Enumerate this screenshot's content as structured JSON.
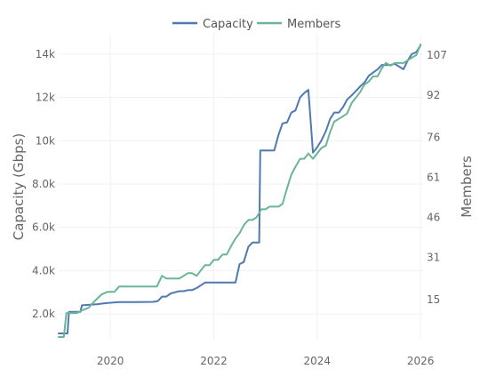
{
  "chart_data": {
    "type": "line",
    "title": "",
    "xlabel": "",
    "ylabel": "Capacity (Gbps)",
    "y2label": "Members",
    "legend_position": "top-center",
    "grid": true,
    "xlim": [
      2019.0,
      2026.05
    ],
    "ylim": [
      813,
      14940
    ],
    "y2lim": [
      0,
      115
    ],
    "x_ticks": [
      2020,
      2022,
      2024,
      2026
    ],
    "x_tick_labels": [
      "2020",
      "2022",
      "2024",
      "2026"
    ],
    "y_ticks": [
      2000,
      4000,
      6000,
      8000,
      10000,
      12000,
      14000
    ],
    "y_tick_labels": [
      "2.0k",
      "4.0k",
      "6.0k",
      "8.0k",
      "10k",
      "12k",
      "14k"
    ],
    "y2_ticks": [
      15,
      31,
      46,
      61,
      76,
      92,
      107
    ],
    "y2_tick_labels": [
      "15",
      "31",
      "46",
      "61",
      "76",
      "92",
      "107"
    ],
    "series": [
      {
        "name": "Capacity",
        "axis": "left",
        "color": "#4f79b0",
        "x": [
          2019.0,
          2019.17,
          2019.2,
          2019.42,
          2019.45,
          2019.75,
          2019.92,
          2020.17,
          2020.5,
          2020.83,
          2020.92,
          2021.0,
          2021.08,
          2021.17,
          2021.25,
          2021.33,
          2021.42,
          2021.5,
          2021.58,
          2021.67,
          2021.83,
          2022.0,
          2022.33,
          2022.42,
          2022.5,
          2022.58,
          2022.67,
          2022.75,
          2022.88,
          2022.9,
          2023.0,
          2023.17,
          2023.25,
          2023.33,
          2023.42,
          2023.5,
          2023.58,
          2023.67,
          2023.75,
          2023.83,
          2023.92,
          2024.0,
          2024.08,
          2024.17,
          2024.25,
          2024.33,
          2024.42,
          2024.5,
          2024.58,
          2024.67,
          2024.75,
          2024.83,
          2024.92,
          2025.0,
          2025.17,
          2025.25,
          2025.33,
          2025.42,
          2025.5,
          2025.67,
          2025.75,
          2025.83,
          2025.92,
          2026.0
        ],
        "values": [
          1100,
          1100,
          2100,
          2100,
          2400,
          2450,
          2500,
          2550,
          2550,
          2560,
          2600,
          2800,
          2800,
          2950,
          3000,
          3050,
          3050,
          3100,
          3100,
          3200,
          3450,
          3450,
          3450,
          3450,
          4300,
          4400,
          5100,
          5300,
          5300,
          9550,
          9550,
          9550,
          10250,
          10800,
          10850,
          11300,
          11400,
          12000,
          12200,
          12350,
          9450,
          9700,
          10000,
          10450,
          11000,
          11300,
          11300,
          11550,
          11900,
          12100,
          12300,
          12500,
          12700,
          13000,
          13300,
          13500,
          13500,
          13500,
          13550,
          13300,
          13700,
          14000,
          14100,
          14400
        ]
      },
      {
        "name": "Members",
        "axis": "right",
        "color": "#6bb596",
        "x": [
          2019.0,
          2019.1,
          2019.15,
          2019.35,
          2019.45,
          2019.58,
          2019.67,
          2019.83,
          2019.95,
          2020.08,
          2020.17,
          2020.33,
          2020.5,
          2020.75,
          2020.9,
          2021.0,
          2021.08,
          2021.25,
          2021.33,
          2021.42,
          2021.5,
          2021.58,
          2021.67,
          2021.75,
          2021.83,
          2021.92,
          2022.0,
          2022.08,
          2022.17,
          2022.25,
          2022.33,
          2022.42,
          2022.5,
          2022.58,
          2022.67,
          2022.75,
          2022.83,
          2022.92,
          2023.0,
          2023.08,
          2023.17,
          2023.25,
          2023.33,
          2023.42,
          2023.5,
          2023.58,
          2023.67,
          2023.75,
          2023.83,
          2023.92,
          2024.0,
          2024.08,
          2024.17,
          2024.25,
          2024.33,
          2024.42,
          2024.5,
          2024.58,
          2024.67,
          2024.75,
          2024.83,
          2024.92,
          2025.0,
          2025.08,
          2025.17,
          2025.25,
          2025.33,
          2025.42,
          2025.5,
          2025.58,
          2025.67,
          2025.75,
          2025.83,
          2025.92,
          2026.0
        ],
        "values": [
          1,
          1,
          10,
          10,
          11,
          12,
          14,
          17,
          18,
          18,
          20,
          20,
          20,
          20,
          20,
          24,
          23,
          23,
          23,
          24,
          25,
          25,
          24,
          26,
          28,
          28,
          30,
          30,
          32,
          32,
          35,
          38,
          40,
          43,
          45,
          45,
          46,
          49,
          49,
          50,
          50,
          50,
          51,
          57,
          62,
          65,
          68,
          68,
          70,
          68,
          70,
          72,
          73,
          78,
          82,
          83,
          84,
          85,
          89,
          91,
          93,
          96,
          97,
          99,
          99,
          102,
          104,
          103,
          104,
          104,
          104,
          105,
          106,
          107,
          111
        ]
      }
    ]
  }
}
